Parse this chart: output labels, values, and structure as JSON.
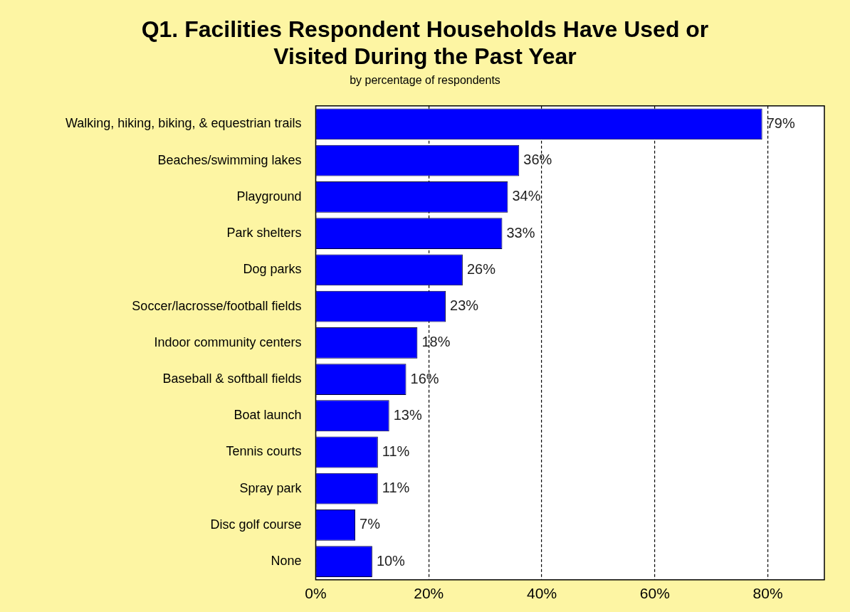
{
  "chart_data": {
    "type": "bar",
    "orientation": "horizontal",
    "title": "Q1. Facilities Respondent Households Have Used or Visited During the Past Year",
    "subtitle": "by percentage of respondents",
    "categories": [
      "Walking, hiking, biking, & equestrian trails",
      "Beaches/swimming lakes",
      "Playground",
      "Park shelters",
      "Dog parks",
      "Soccer/lacrosse/football fields",
      "Indoor community centers",
      "Baseball & softball fields",
      "Boat launch",
      "Tennis courts",
      "Spray park",
      "Disc golf course",
      "None"
    ],
    "values": [
      79,
      36,
      34,
      33,
      26,
      23,
      18,
      16,
      13,
      11,
      11,
      7,
      10
    ],
    "value_labels": [
      "79%",
      "36%",
      "34%",
      "33%",
      "26%",
      "23%",
      "18%",
      "16%",
      "13%",
      "11%",
      "11%",
      "7%",
      "10%"
    ],
    "color": "#0000ff",
    "xlim": [
      0,
      90
    ],
    "xticks": [
      {
        "value": 0,
        "label": "0%"
      },
      {
        "value": 20,
        "label": "20%"
      },
      {
        "value": 40,
        "label": "40%"
      },
      {
        "value": 60,
        "label": "60%"
      },
      {
        "value": 80,
        "label": "80%"
      }
    ],
    "grid": "x",
    "legend": false
  }
}
